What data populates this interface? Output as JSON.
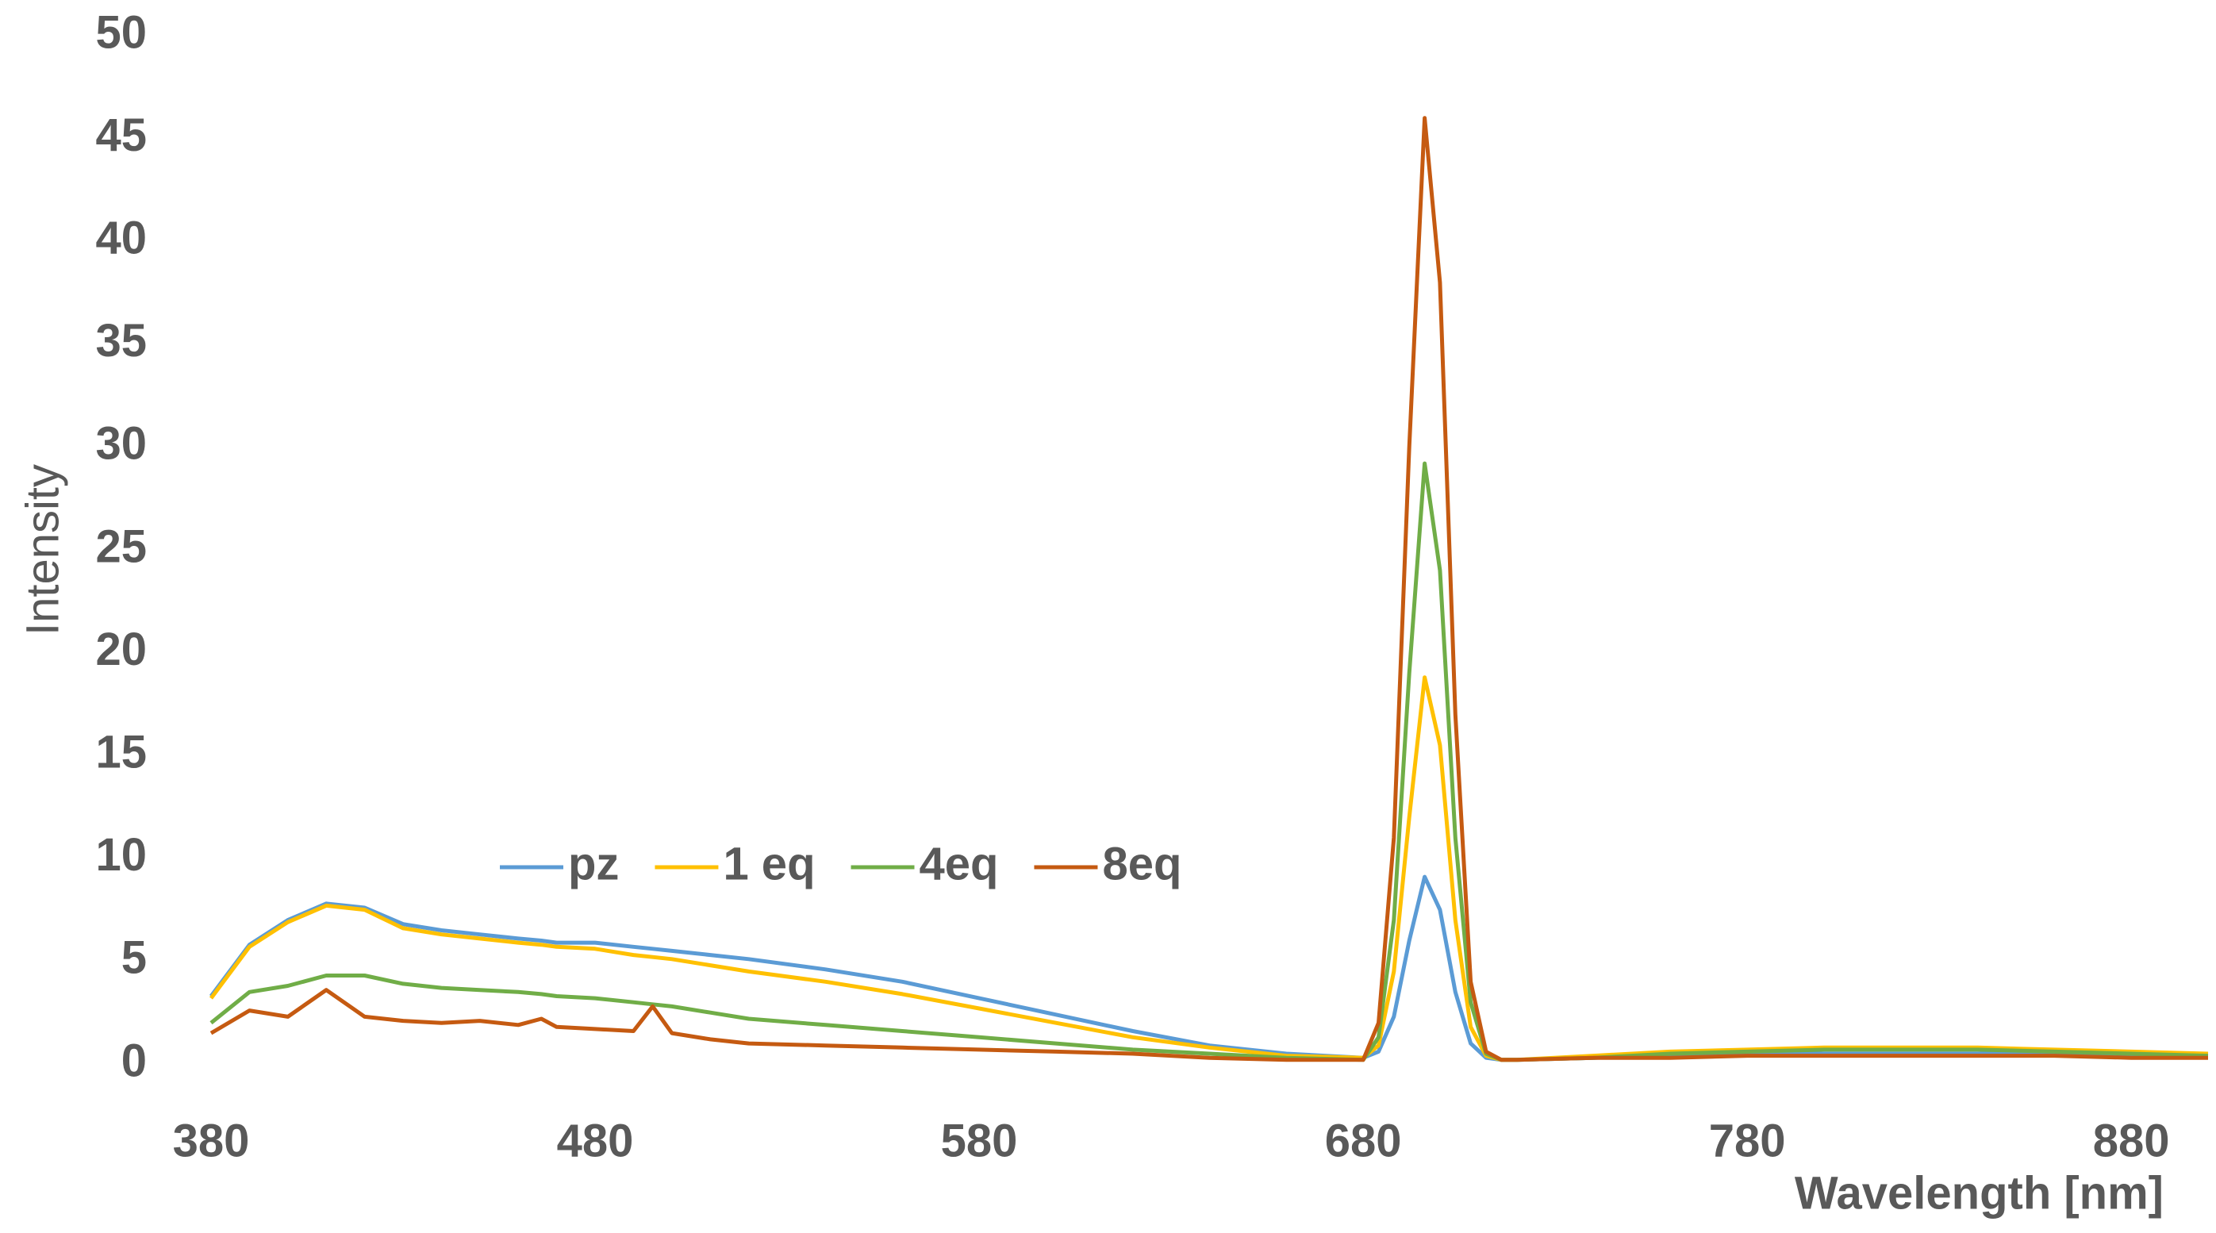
{
  "chart_data": {
    "type": "line",
    "x_label": "Wavelength [nm]",
    "y_label": "Intensity",
    "x": [
      380,
      390,
      400,
      410,
      420,
      430,
      440,
      450,
      460,
      466,
      470,
      480,
      490,
      495,
      500,
      510,
      520,
      540,
      560,
      580,
      600,
      620,
      640,
      660,
      680,
      684,
      688,
      692,
      696,
      700,
      704,
      708,
      712,
      716,
      720,
      740,
      760,
      780,
      800,
      820,
      840,
      860,
      880,
      900
    ],
    "series": [
      {
        "name": "pz",
        "color": "#5B9BD5",
        "values": [
          3.3,
          5.8,
          7,
          7.8,
          7.6,
          6.8,
          6.5,
          6.3,
          6.1,
          6.0,
          5.9,
          5.9,
          5.7,
          5.6,
          5.5,
          5.3,
          5.1,
          4.6,
          4.0,
          3.2,
          2.4,
          1.6,
          0.9,
          0.5,
          0.3,
          0.6,
          2.3,
          6,
          9.1,
          7.5,
          3.5,
          1.0,
          0.3,
          0.2,
          0.2,
          0.3,
          0.4,
          0.5,
          0.5,
          0.5,
          0.5,
          0.5,
          0.4,
          0.4
        ]
      },
      {
        "name": "1 eq",
        "color": "#FFC000",
        "values": [
          3.2,
          5.7,
          6.9,
          7.7,
          7.5,
          6.6,
          6.3,
          6.1,
          5.9,
          5.8,
          5.7,
          5.6,
          5.3,
          5.2,
          5.1,
          4.8,
          4.5,
          4.0,
          3.4,
          2.7,
          2.0,
          1.3,
          0.8,
          0.4,
          0.3,
          0.9,
          4.5,
          12,
          18.8,
          15.5,
          7,
          1.8,
          0.4,
          0.2,
          0.2,
          0.4,
          0.6,
          0.7,
          0.8,
          0.8,
          0.8,
          0.7,
          0.6,
          0.5
        ]
      },
      {
        "name": "4eq",
        "color": "#70AD47",
        "values": [
          2.0,
          3.5,
          3.8,
          4.3,
          4.3,
          3.9,
          3.7,
          3.6,
          3.5,
          3.4,
          3.3,
          3.2,
          3.0,
          2.9,
          2.8,
          2.5,
          2.2,
          1.9,
          1.6,
          1.3,
          1.0,
          0.7,
          0.5,
          0.3,
          0.2,
          1.3,
          7,
          19,
          29.2,
          24,
          11,
          3,
          0.5,
          0.2,
          0.2,
          0.3,
          0.5,
          0.6,
          0.7,
          0.7,
          0.7,
          0.6,
          0.5,
          0.4
        ]
      },
      {
        "name": "8eq",
        "color": "#C55A11",
        "values": [
          1.5,
          2.6,
          2.3,
          3.6,
          2.3,
          2.1,
          2.0,
          2.1,
          1.9,
          2.2,
          1.8,
          1.7,
          1.6,
          2.8,
          1.5,
          1.2,
          1.0,
          0.9,
          0.8,
          0.7,
          0.6,
          0.5,
          0.3,
          0.2,
          0.2,
          2,
          11,
          30,
          46,
          38,
          17,
          4,
          0.6,
          0.2,
          0.2,
          0.3,
          0.3,
          0.4,
          0.4,
          0.4,
          0.4,
          0.4,
          0.3,
          0.3
        ]
      }
    ],
    "xlim": [
      380,
      900
    ],
    "xticks": [
      380,
      480,
      580,
      680,
      780,
      880
    ],
    "ylim": [
      0,
      50
    ],
    "yticks": [
      0,
      5,
      10,
      15,
      20,
      25,
      30,
      35,
      40,
      45,
      50
    ],
    "grid": false,
    "legend": "center-left"
  }
}
